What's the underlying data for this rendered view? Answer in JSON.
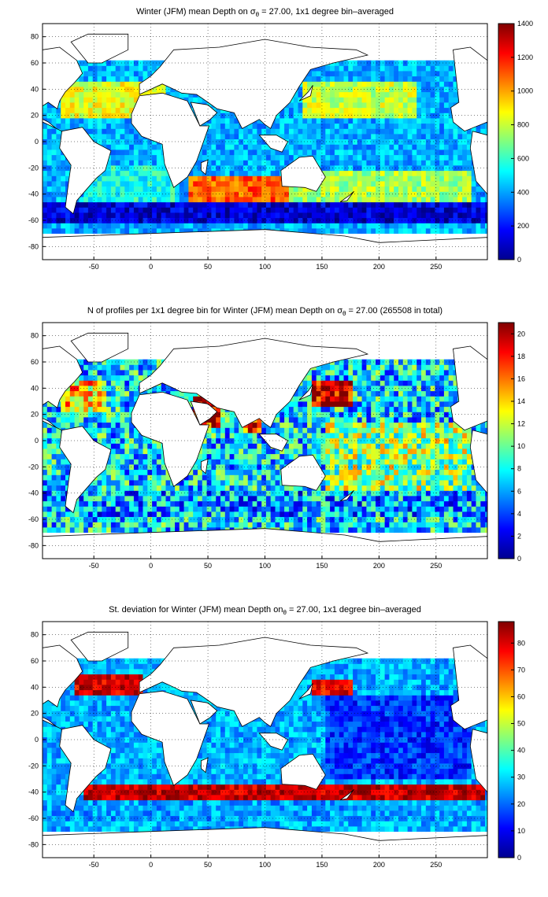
{
  "chart_data": [
    {
      "type": "heatmap",
      "title_pre": "Winter (JFM) mean Depth on σ",
      "title_sub": "θ",
      "title_post": " = 27.00, 1x1 degree bin–averaged",
      "x_ticks": [
        -50,
        0,
        50,
        100,
        150,
        200,
        250
      ],
      "y_ticks": [
        80,
        60,
        40,
        20,
        0,
        -20,
        -40,
        -60,
        -80
      ],
      "xlim": [
        -95,
        295
      ],
      "ylim": [
        -90,
        90
      ],
      "grid": true,
      "colormap": "jet",
      "colorbar_ticks": [
        0,
        200,
        400,
        600,
        800,
        1000,
        1200,
        1400
      ],
      "clim": [
        0,
        1400
      ],
      "regions": [
        {
          "lon": [
            -80,
            10
          ],
          "lat": [
            15,
            45
          ],
          "value": 850
        },
        {
          "lon": [
            130,
            230
          ],
          "lat": [
            18,
            45
          ],
          "value": 800
        },
        {
          "lon": [
            30,
            120
          ],
          "lat": [
            -50,
            -28
          ],
          "value": 1100
        },
        {
          "lon": [
            120,
            280
          ],
          "lat": [
            -50,
            -25
          ],
          "value": 750
        },
        {
          "lon": [
            -60,
            20
          ],
          "lat": [
            -50,
            -20
          ],
          "value": 550
        },
        {
          "lon": [
            -95,
            295
          ],
          "lat": [
            -65,
            -50
          ],
          "value": 120
        },
        {
          "lon": [
            -95,
            295
          ],
          "lat": [
            -15,
            15
          ],
          "value": 420
        }
      ]
    },
    {
      "type": "heatmap",
      "title_pre": "N of profiles per 1x1 degree bin for Winter (JFM) mean Depth on σ",
      "title_sub": "θ",
      "title_post": " = 27.00 (265508 in total)",
      "x_ticks": [
        -50,
        0,
        50,
        100,
        150,
        200,
        250
      ],
      "y_ticks": [
        80,
        60,
        40,
        20,
        0,
        -20,
        -40,
        -60,
        -80
      ],
      "xlim": [
        -95,
        295
      ],
      "ylim": [
        -90,
        90
      ],
      "grid": true,
      "colormap": "jet",
      "colorbar_ticks": [
        0,
        2,
        4,
        6,
        8,
        10,
        12,
        14,
        16,
        18,
        20
      ],
      "clim": [
        0,
        21
      ],
      "regions": [
        {
          "lon": [
            140,
            175
          ],
          "lat": [
            25,
            45
          ],
          "value": 20
        },
        {
          "lon": [
            35,
            60
          ],
          "lat": [
            10,
            30
          ],
          "value": 19
        },
        {
          "lon": [
            80,
            95
          ],
          "lat": [
            5,
            22
          ],
          "value": 18
        },
        {
          "lon": [
            -80,
            -40
          ],
          "lat": [
            20,
            45
          ],
          "value": 14
        },
        {
          "lon": [
            150,
            280
          ],
          "lat": [
            -40,
            10
          ],
          "value": 11
        },
        {
          "lon": [
            -95,
            295
          ],
          "lat": [
            -60,
            -40
          ],
          "value": 6
        }
      ]
    },
    {
      "type": "heatmap",
      "title_pre": "St. deviation for Winter (JFM) mean Depth on",
      "title_sub": "θ",
      "title_post": " = 27.00, 1x1 degree bin–averaged",
      "x_ticks": [
        -50,
        0,
        50,
        100,
        150,
        200,
        250
      ],
      "y_ticks": [
        80,
        60,
        40,
        20,
        0,
        -20,
        -40,
        -60,
        -80
      ],
      "xlim": [
        -95,
        295
      ],
      "ylim": [
        -90,
        90
      ],
      "grid": true,
      "colormap": "jet",
      "colorbar_ticks": [
        0,
        10,
        20,
        30,
        40,
        50,
        60,
        70,
        80
      ],
      "clim": [
        0,
        88
      ],
      "regions": [
        {
          "lon": [
            -70,
            -10
          ],
          "lat": [
            33,
            48
          ],
          "value": 80
        },
        {
          "lon": [
            140,
            175
          ],
          "lat": [
            33,
            42
          ],
          "value": 78
        },
        {
          "lon": [
            -60,
            290
          ],
          "lat": [
            -48,
            -35
          ],
          "value": 82
        },
        {
          "lon": [
            -95,
            295
          ],
          "lat": [
            -62,
            -50
          ],
          "value": 25
        },
        {
          "lon": [
            150,
            280
          ],
          "lat": [
            -30,
            30
          ],
          "value": 15
        }
      ]
    }
  ]
}
